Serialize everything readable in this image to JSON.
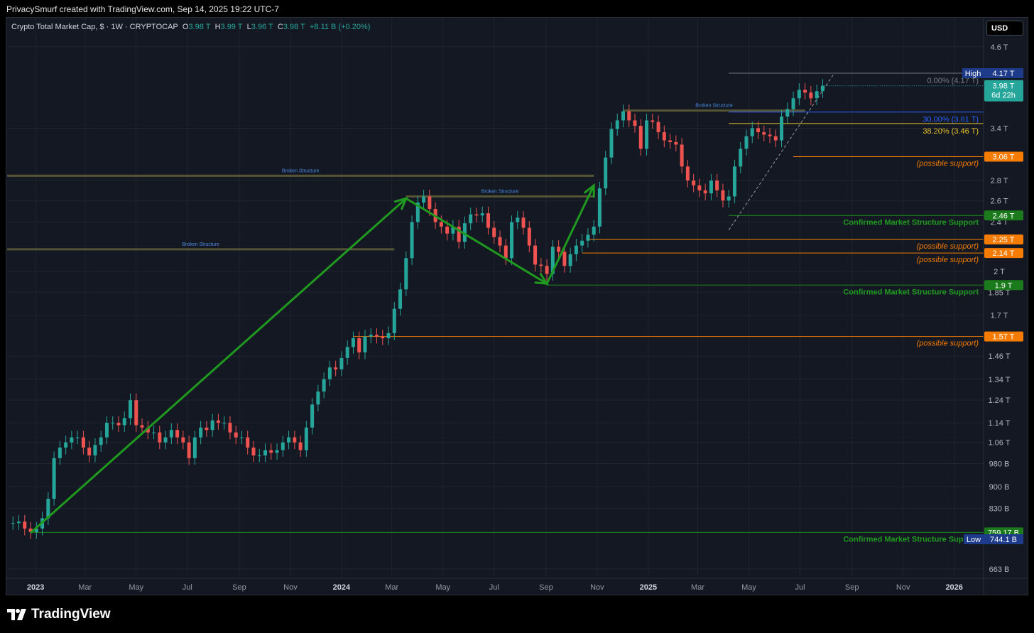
{
  "header": {
    "attribution": "PrivacySmurf created with TradingView.com, Sep 14, 2025 19:22 UTC-7"
  },
  "legend": {
    "symbol": "Crypto Total Market Cap, $ · 1W · CRYPTOCAP",
    "open_label": "O",
    "open": "3.98 T",
    "high_label": "H",
    "high": "3.99 T",
    "low_label": "L",
    "low": "3.96 T",
    "close_label": "C",
    "close": "3.98 T",
    "change": "+8.11 B (+0.20%)"
  },
  "currency_button": "USD",
  "footer": {
    "brand": "TradingView"
  },
  "colors": {
    "up": "#26a69a",
    "down": "#ef5350",
    "background": "#141823",
    "trend": "#1f9a1f",
    "support_possible": "#f57c00",
    "support_confirmed": "#1b8a1b",
    "fib_30": "#2962ff",
    "fib_382": "#e6c229"
  },
  "chart_data": {
    "type": "candlestick",
    "timeframe": "1W",
    "y_scale": "log",
    "y_tick_labels": [
      "4.6 T",
      "3.4 T",
      "2.8 T",
      "2.6 T",
      "2.4 T",
      "2 T",
      "1.85 T",
      "1.7 T",
      "1.46 T",
      "1.34 T",
      "1.24 T",
      "1.14 T",
      "1.06 T",
      "980 B",
      "900 B",
      "830 B",
      "663 B"
    ],
    "y_ticks": [
      4600,
      3400,
      2800,
      2600,
      2400,
      2000,
      1850,
      1700,
      1460,
      1340,
      1240,
      1140,
      1060,
      980,
      900,
      830,
      663
    ],
    "x_tick_labels": [
      "2023",
      "Mar",
      "May",
      "Jul",
      "Sep",
      "Nov",
      "2024",
      "Mar",
      "May",
      "Jul",
      "Sep",
      "Nov",
      "2025",
      "Mar",
      "May",
      "Jul",
      "Sep",
      "Nov",
      "2026"
    ],
    "x_ticks": [
      "2023-01-01",
      "2023-03-01",
      "2023-05-01",
      "2023-07-01",
      "2023-09-01",
      "2023-11-01",
      "2024-01-01",
      "2024-03-01",
      "2024-05-01",
      "2024-07-01",
      "2024-09-01",
      "2024-11-01",
      "2025-01-01",
      "2025-03-01",
      "2025-05-01",
      "2025-07-01",
      "2025-09-01",
      "2025-11-01",
      "2026-01-01"
    ],
    "x_range": [
      "2022-11-28",
      "2026-02-05"
    ],
    "close_series_B": [
      786,
      790,
      770,
      760,
      770,
      800,
      860,
      1000,
      1040,
      1060,
      1080,
      1080,
      1040,
      1010,
      1050,
      1080,
      1140,
      1140,
      1130,
      1160,
      1240,
      1130,
      1120,
      1100,
      1100,
      1060,
      1080,
      1110,
      1080,
      1060,
      1000,
      1080,
      1120,
      1110,
      1150,
      1140,
      1140,
      1100,
      1080,
      1080,
      1040,
      1010,
      1010,
      1030,
      1020,
      1030,
      1060,
      1080,
      1060,
      1030,
      1120,
      1220,
      1280,
      1340,
      1400,
      1390,
      1450,
      1510,
      1560,
      1480,
      1570,
      1580,
      1570,
      1560,
      1590,
      1740,
      1870,
      2100,
      2400,
      2580,
      2640,
      2520,
      2400,
      2360,
      2300,
      2360,
      2230,
      2390,
      2470,
      2460,
      2480,
      2350,
      2270,
      2200,
      2100,
      2400,
      2440,
      2350,
      2200,
      2050,
      2040,
      1980,
      2190,
      2150,
      2040,
      2130,
      2200,
      2240,
      2290,
      2360,
      2720,
      3050,
      3390,
      3500,
      3620,
      3500,
      3430,
      3150,
      3500,
      3480,
      3350,
      3250,
      3230,
      3200,
      2950,
      2800,
      2750,
      2700,
      2670,
      2800,
      2700,
      2600,
      2640,
      2950,
      3150,
      3300,
      3400,
      3350,
      3320,
      3300,
      3250,
      3550,
      3650,
      3800,
      3920,
      3880,
      3800,
      3900,
      3980
    ],
    "ohlc_B": {
      "open": 3980,
      "high": 3990,
      "low": 3960,
      "close": 3980,
      "change": 8.11,
      "change_pct": 0.2
    },
    "all_time_high": {
      "label": "High",
      "value": "4.17 T",
      "value_B": 4170
    },
    "period_low": {
      "label": "Low",
      "value": "744.1 B",
      "value_B": 744.1
    },
    "last_price_tag": {
      "price": "3.98 T",
      "countdown": "6d 22h",
      "value_B": 3980
    },
    "fib_levels": [
      {
        "label": "0.00% (4.17 T)",
        "value_B": 4170,
        "color": "#6b7280"
      },
      {
        "label": "30.00% (3.61 T)",
        "value_B": 3610,
        "color": "#2962ff"
      },
      {
        "label": "38.20% (3.46 T)",
        "value_B": 3460,
        "color": "#e6c229"
      }
    ],
    "support_levels": [
      {
        "tag": "3.06 T",
        "value_B": 3060,
        "kind": "possible",
        "note": "(possible support)"
      },
      {
        "tag": "2.46 T",
        "value_B": 2460,
        "kind": "confirmed",
        "note": "Confirmed Market Structure Support"
      },
      {
        "tag": "2.25 T",
        "value_B": 2250,
        "kind": "possible",
        "note": "(possible support)"
      },
      {
        "tag": "2.14 T",
        "value_B": 2140,
        "kind": "possible",
        "note": "(possible support)"
      },
      {
        "tag": "1.9 T",
        "value_B": 1900,
        "kind": "confirmed",
        "note": "Confirmed Market Structure Support"
      },
      {
        "tag": "1.57 T",
        "value_B": 1570,
        "kind": "possible",
        "note": "(possible support)"
      },
      {
        "tag": "759.17 B",
        "value_B": 759.17,
        "kind": "confirmed",
        "note": "Confirmed Market Structure Support"
      }
    ],
    "broken_structure_lines": [
      {
        "label": "Broken Structure",
        "value_B": 2850,
        "from": "2022-11-28",
        "to": "2024-10-28"
      },
      {
        "label": "Broken Structure",
        "value_B": 2640,
        "from": "2024-03-18",
        "to": "2024-10-28"
      },
      {
        "label": "Broken Structure",
        "value_B": 2170,
        "from": "2022-11-28",
        "to": "2024-03-04"
      },
      {
        "label": "Broken Structure",
        "value_B": 3630,
        "from": "2024-12-02",
        "to": "2025-07-07"
      }
    ],
    "trend_path": [
      {
        "date": "2022-12-26",
        "value_B": 758
      },
      {
        "date": "2024-03-18",
        "value_B": 2620
      },
      {
        "date": "2024-09-02",
        "value_B": 1910
      },
      {
        "date": "2024-10-28",
        "value_B": 2750
      }
    ]
  }
}
